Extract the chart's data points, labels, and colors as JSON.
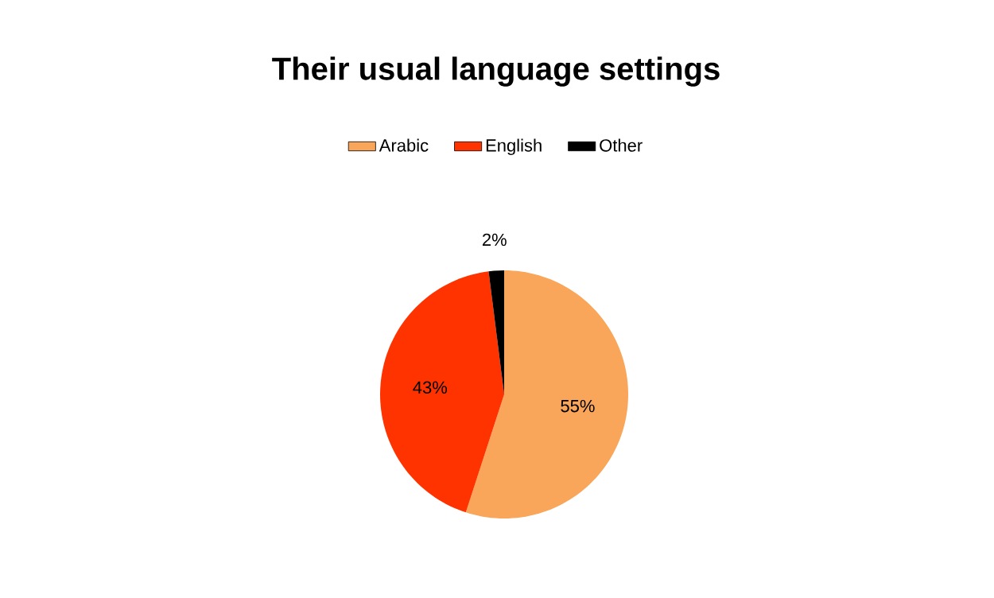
{
  "chart_data": {
    "type": "pie",
    "title": "Their usual language settings",
    "categories": [
      "Arabic",
      "English",
      "Other"
    ],
    "values": [
      55,
      43,
      2
    ],
    "colors": [
      "#f9a65a",
      "#ff3300",
      "#000000"
    ],
    "value_labels": [
      "55%",
      "43%",
      "2%"
    ],
    "legend": "top"
  }
}
